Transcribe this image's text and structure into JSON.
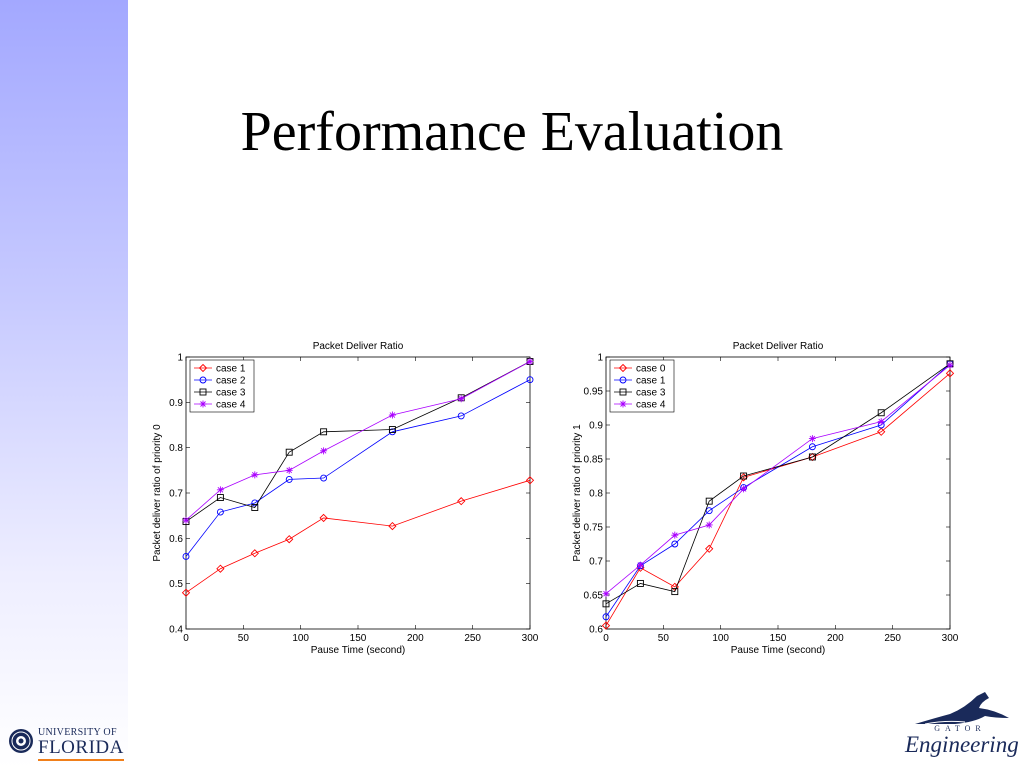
{
  "slide": {
    "title": "Performance Evaluation",
    "side_band_color": "#a3a8ff"
  },
  "logos": {
    "uf_line1": "UNIVERSITY OF",
    "uf_line2": "FLORIDA",
    "gator_word": "Engineering",
    "gator_sub": "GATOR"
  },
  "chart_data": [
    {
      "type": "line",
      "title": "Packet Deliver Ratio",
      "xlabel": "Pause Time (second)",
      "ylabel": "Packet deliver ratio of priority 0",
      "x": [
        0,
        30,
        60,
        90,
        120,
        180,
        240,
        300
      ],
      "xlim": [
        0,
        300
      ],
      "ylim": [
        0.4,
        1
      ],
      "xticks": [
        "0",
        "50",
        "100",
        "150",
        "200",
        "250",
        "300"
      ],
      "xtick_values": [
        0,
        50,
        100,
        150,
        200,
        250,
        300
      ],
      "yticks": [
        "0.4",
        "0.5",
        "0.6",
        "0.7",
        "0.8",
        "0.9",
        "1"
      ],
      "ytick_values": [
        0.4,
        0.5,
        0.6,
        0.7,
        0.8,
        0.9,
        1.0
      ],
      "legend_position": "top-left",
      "grid": false,
      "series": [
        {
          "name": "case 1",
          "color": "#ff0000",
          "marker": "diamond",
          "values": [
            0.48,
            0.533,
            0.567,
            0.598,
            0.645,
            0.627,
            0.682,
            0.728
          ]
        },
        {
          "name": "case 2",
          "color": "#0000ff",
          "marker": "circle",
          "values": [
            0.56,
            0.658,
            0.678,
            0.73,
            0.733,
            0.835,
            0.87,
            0.95
          ]
        },
        {
          "name": "case 3",
          "color": "#000000",
          "marker": "square",
          "values": [
            0.637,
            0.69,
            0.668,
            0.79,
            0.835,
            0.84,
            0.91,
            0.99
          ]
        },
        {
          "name": "case 4",
          "color": "#aa00ff",
          "marker": "star",
          "values": [
            0.64,
            0.707,
            0.74,
            0.75,
            0.793,
            0.872,
            0.908,
            0.99
          ]
        }
      ]
    },
    {
      "type": "line",
      "title": "Packet Deliver Ratio",
      "xlabel": "Pause Time (second)",
      "ylabel": "Packet deliver ratio of priority 1",
      "x": [
        0,
        30,
        60,
        90,
        120,
        180,
        240,
        300
      ],
      "xlim": [
        0,
        300
      ],
      "ylim": [
        0.6,
        1
      ],
      "xticks": [
        "0",
        "50",
        "100",
        "150",
        "200",
        "250",
        "300"
      ],
      "xtick_values": [
        0,
        50,
        100,
        150,
        200,
        250,
        300
      ],
      "yticks": [
        "0.6",
        "0.65",
        "0.7",
        "0.75",
        "0.8",
        "0.85",
        "0.9",
        "0.95",
        "1"
      ],
      "ytick_values": [
        0.6,
        0.65,
        0.7,
        0.75,
        0.8,
        0.85,
        0.9,
        0.95,
        1.0
      ],
      "legend_position": "top-left",
      "grid": false,
      "series": [
        {
          "name": "case 0",
          "color": "#ff0000",
          "marker": "diamond",
          "values": [
            0.605,
            0.69,
            0.662,
            0.718,
            0.823,
            0.853,
            0.89,
            0.976
          ]
        },
        {
          "name": "case 1",
          "color": "#0000ff",
          "marker": "circle",
          "values": [
            0.618,
            0.693,
            0.725,
            0.774,
            0.808,
            0.868,
            0.9,
            0.99
          ]
        },
        {
          "name": "case 3",
          "color": "#000000",
          "marker": "square",
          "values": [
            0.637,
            0.667,
            0.655,
            0.788,
            0.825,
            0.853,
            0.918,
            0.99
          ]
        },
        {
          "name": "case 4",
          "color": "#aa00ff",
          "marker": "star",
          "values": [
            0.652,
            0.694,
            0.738,
            0.753,
            0.806,
            0.88,
            0.905,
            0.988
          ]
        }
      ]
    }
  ]
}
